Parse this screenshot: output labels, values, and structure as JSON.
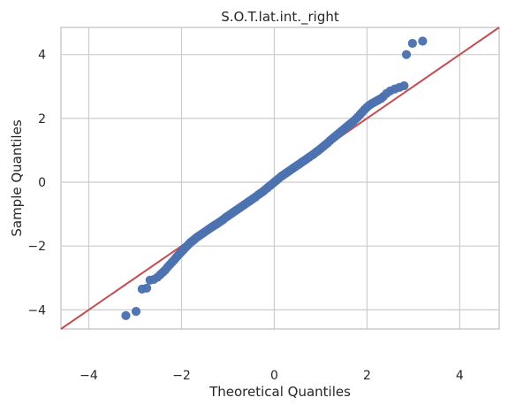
{
  "chart_data": {
    "type": "scatter",
    "title": "S.O.T.lat.int._right",
    "xlabel": "Theoretical Quantiles",
    "ylabel": "Sample Quantiles",
    "xlim": [
      -4.6,
      4.85
    ],
    "ylim": [
      -4.6,
      4.85
    ],
    "xticks": [
      -4,
      -2,
      0,
      2,
      4
    ],
    "yticks": [
      -4,
      -2,
      0,
      2,
      4
    ],
    "grid": true,
    "colors": {
      "points": "#4c72b0",
      "reference_line": "#c44e52",
      "grid": "#cccccc",
      "axes_edge": "#cccccc",
      "background": "#ffffff"
    },
    "series": [
      {
        "type": "scatter",
        "points": [
          [
            -3.2,
            -4.18
          ],
          [
            -2.98,
            -4.05
          ],
          [
            -2.85,
            -3.35
          ],
          [
            -2.75,
            -3.32
          ],
          [
            -2.68,
            -3.07
          ],
          [
            -2.6,
            -3.05
          ],
          [
            -2.52,
            -2.98
          ],
          [
            -2.46,
            -2.9
          ],
          [
            -2.4,
            -2.82
          ],
          [
            -2.35,
            -2.75
          ],
          [
            -2.3,
            -2.66
          ],
          [
            -2.25,
            -2.58
          ],
          [
            -2.2,
            -2.5
          ],
          [
            -2.16,
            -2.44
          ],
          [
            -2.12,
            -2.37
          ],
          [
            -2.08,
            -2.3
          ],
          [
            -2.04,
            -2.24
          ],
          [
            -2.0,
            -2.18
          ],
          [
            -1.96,
            -2.12
          ],
          [
            -1.92,
            -2.05
          ],
          [
            -1.88,
            -2.0
          ],
          [
            -1.84,
            -1.94
          ],
          [
            -1.8,
            -1.88
          ],
          [
            -1.76,
            -1.84
          ],
          [
            -1.72,
            -1.79
          ],
          [
            -1.68,
            -1.74
          ],
          [
            -1.64,
            -1.7
          ],
          [
            -1.6,
            -1.66
          ],
          [
            -1.55,
            -1.61
          ],
          [
            -1.5,
            -1.56
          ],
          [
            -1.45,
            -1.51
          ],
          [
            -1.4,
            -1.46
          ],
          [
            -1.35,
            -1.41
          ],
          [
            -1.3,
            -1.36
          ],
          [
            -1.25,
            -1.32
          ],
          [
            -1.2,
            -1.27
          ],
          [
            -1.15,
            -1.22
          ],
          [
            -1.1,
            -1.17
          ],
          [
            -1.05,
            -1.11
          ],
          [
            -1.0,
            -1.06
          ],
          [
            -0.95,
            -1.01
          ],
          [
            -0.9,
            -0.96
          ],
          [
            -0.85,
            -0.91
          ],
          [
            -0.8,
            -0.86
          ],
          [
            -0.75,
            -0.81
          ],
          [
            -0.7,
            -0.76
          ],
          [
            -0.65,
            -0.71
          ],
          [
            -0.6,
            -0.66
          ],
          [
            -0.55,
            -0.61
          ],
          [
            -0.5,
            -0.56
          ],
          [
            -0.45,
            -0.51
          ],
          [
            -0.4,
            -0.46
          ],
          [
            -0.35,
            -0.4
          ],
          [
            -0.3,
            -0.35
          ],
          [
            -0.25,
            -0.3
          ],
          [
            -0.2,
            -0.24
          ],
          [
            -0.15,
            -0.18
          ],
          [
            -0.1,
            -0.12
          ],
          [
            -0.05,
            -0.06
          ],
          [
            0.0,
            0.0
          ],
          [
            0.05,
            0.06
          ],
          [
            0.1,
            0.12
          ],
          [
            0.15,
            0.18
          ],
          [
            0.2,
            0.23
          ],
          [
            0.25,
            0.28
          ],
          [
            0.3,
            0.33
          ],
          [
            0.35,
            0.38
          ],
          [
            0.4,
            0.43
          ],
          [
            0.45,
            0.48
          ],
          [
            0.5,
            0.53
          ],
          [
            0.55,
            0.58
          ],
          [
            0.6,
            0.63
          ],
          [
            0.65,
            0.68
          ],
          [
            0.7,
            0.73
          ],
          [
            0.75,
            0.78
          ],
          [
            0.8,
            0.83
          ],
          [
            0.85,
            0.88
          ],
          [
            0.9,
            0.94
          ],
          [
            0.95,
            0.99
          ],
          [
            1.0,
            1.05
          ],
          [
            1.05,
            1.11
          ],
          [
            1.1,
            1.17
          ],
          [
            1.15,
            1.23
          ],
          [
            1.2,
            1.3
          ],
          [
            1.25,
            1.36
          ],
          [
            1.3,
            1.42
          ],
          [
            1.35,
            1.48
          ],
          [
            1.4,
            1.54
          ],
          [
            1.45,
            1.6
          ],
          [
            1.5,
            1.66
          ],
          [
            1.55,
            1.72
          ],
          [
            1.6,
            1.78
          ],
          [
            1.65,
            1.84
          ],
          [
            1.7,
            1.9
          ],
          [
            1.75,
            1.97
          ],
          [
            1.8,
            2.04
          ],
          [
            1.85,
            2.12
          ],
          [
            1.9,
            2.2
          ],
          [
            1.95,
            2.28
          ],
          [
            2.0,
            2.35
          ],
          [
            2.05,
            2.41
          ],
          [
            2.1,
            2.46
          ],
          [
            2.15,
            2.5
          ],
          [
            2.2,
            2.54
          ],
          [
            2.25,
            2.58
          ],
          [
            2.3,
            2.62
          ],
          [
            2.35,
            2.68
          ],
          [
            2.42,
            2.78
          ],
          [
            2.5,
            2.86
          ],
          [
            2.6,
            2.92
          ],
          [
            2.7,
            2.97
          ],
          [
            2.8,
            3.02
          ],
          [
            2.85,
            4.0
          ],
          [
            2.98,
            4.35
          ],
          [
            3.2,
            4.42
          ]
        ]
      },
      {
        "type": "line",
        "points": [
          [
            -4.6,
            -4.6
          ],
          [
            4.85,
            4.85
          ]
        ]
      }
    ]
  }
}
